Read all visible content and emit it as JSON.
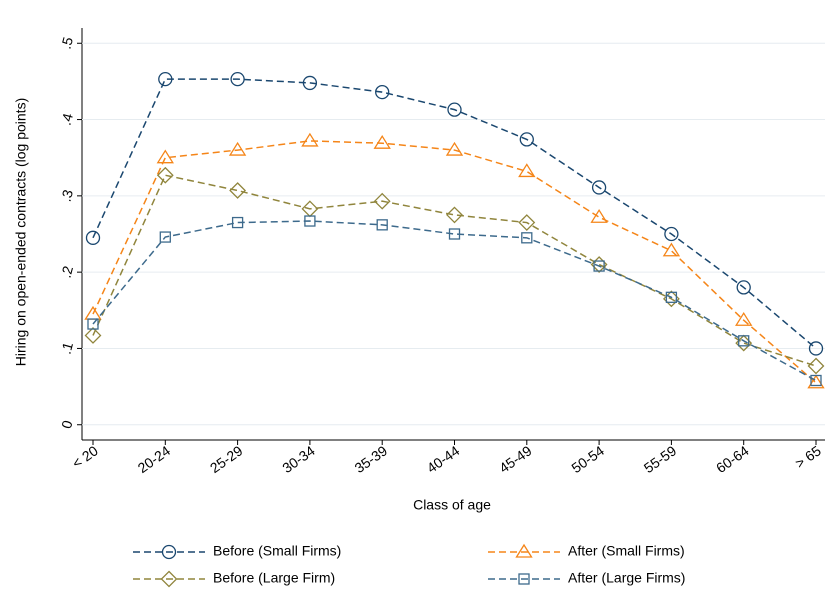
{
  "chart_data": {
    "type": "line",
    "x_label": "Class of age",
    "y_label": "Hiring on open-ended contracts (log points)",
    "categories": [
      "< 20",
      "20-24",
      "25-29",
      "30-34",
      "35-39",
      "40-44",
      "45-49",
      "50-54",
      "55-59",
      "60-64",
      "> 65"
    ],
    "ylim": [
      -0.02,
      0.52
    ],
    "yticks": [
      0,
      {
        "value": 0.1,
        "label": ".1"
      },
      {
        "value": 0.2,
        "label": ".2"
      },
      {
        "value": 0.3,
        "label": ".3"
      },
      {
        "value": 0.4,
        "label": ".4"
      },
      {
        "value": 0.5,
        "label": ".5"
      }
    ],
    "grid": true,
    "series": [
      {
        "name": "Before (Small Firms)",
        "color": "#1a476f",
        "marker": "circle",
        "values": [
          0.245,
          0.453,
          0.453,
          0.448,
          0.436,
          0.413,
          0.374,
          0.311,
          0.25,
          0.18,
          0.1
        ]
      },
      {
        "name": "After (Small Firms)",
        "color": "#f58518",
        "marker": "triangle",
        "values": [
          0.145,
          0.35,
          0.36,
          0.372,
          0.369,
          0.36,
          0.332,
          0.272,
          0.228,
          0.137,
          0.055
        ]
      },
      {
        "name": "Before (Large Firm)",
        "color": "#90853c",
        "marker": "diamond",
        "values": [
          0.117,
          0.327,
          0.307,
          0.283,
          0.293,
          0.275,
          0.265,
          0.21,
          0.165,
          0.107,
          0.077
        ]
      },
      {
        "name": "After (Large Firms)",
        "color": "#3d6a8c",
        "marker": "square",
        "values": [
          0.132,
          0.246,
          0.265,
          0.267,
          0.262,
          0.25,
          0.245,
          0.208,
          0.167,
          0.11,
          0.058
        ]
      }
    ]
  }
}
